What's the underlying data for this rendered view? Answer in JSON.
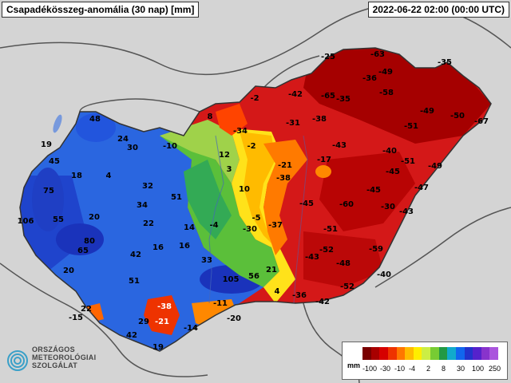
{
  "title": "Csapadékösszeg-anomália (30 nap) [mm]",
  "timestamp": "2022-06-22 02:00 (00:00 UTC)",
  "logo": {
    "line1": "ORSZÁGOS",
    "line2": "METEOROLÓGIAI",
    "line3": "SZOLGÁLAT"
  },
  "legend": {
    "unit": "mm",
    "colors": [
      "#7a0000",
      "#a80000",
      "#d60000",
      "#ee3300",
      "#ff7700",
      "#ffbb00",
      "#ffee00",
      "#ccee44",
      "#77cc33",
      "#229944",
      "#11aacc",
      "#1166ee",
      "#2233cc",
      "#5522cc",
      "#8833cc",
      "#aa55dd"
    ],
    "ticks": [
      "-100",
      "-30",
      "-10",
      "-4",
      "2",
      "8",
      "30",
      "100",
      "250"
    ]
  },
  "values": [
    {
      "label": "-63"
    },
    {
      "label": "-35"
    },
    {
      "label": "-25"
    },
    {
      "label": "-49"
    },
    {
      "label": "-36"
    },
    {
      "label": "-58"
    },
    {
      "label": "-42"
    },
    {
      "label": "-65"
    },
    {
      "label": "-35"
    },
    {
      "label": "-2"
    },
    {
      "label": "-49"
    },
    {
      "label": "-50"
    },
    {
      "label": "-67"
    },
    {
      "label": "8"
    },
    {
      "label": "-31"
    },
    {
      "label": "-38"
    },
    {
      "label": "-51"
    },
    {
      "label": "48"
    },
    {
      "label": "-34"
    },
    {
      "label": "24"
    },
    {
      "label": "30"
    },
    {
      "label": "-10"
    },
    {
      "label": "-2"
    },
    {
      "label": "19"
    },
    {
      "label": "-43"
    },
    {
      "label": "12"
    },
    {
      "label": "-40"
    },
    {
      "label": "45"
    },
    {
      "label": "-17"
    },
    {
      "label": "-51"
    },
    {
      "label": "-49"
    },
    {
      "label": "3"
    },
    {
      "label": "-21"
    },
    {
      "label": "-45"
    },
    {
      "label": "18"
    },
    {
      "label": "4"
    },
    {
      "label": "-38"
    },
    {
      "label": "32"
    },
    {
      "label": "10"
    },
    {
      "label": "-47"
    },
    {
      "label": "75"
    },
    {
      "label": "-45"
    },
    {
      "label": "51"
    },
    {
      "label": "-45"
    },
    {
      "label": "-60"
    },
    {
      "label": "-30"
    },
    {
      "label": "34"
    },
    {
      "label": "-43"
    },
    {
      "label": "20"
    },
    {
      "label": "-5"
    },
    {
      "label": "106"
    },
    {
      "label": "55"
    },
    {
      "label": "22"
    },
    {
      "label": "14"
    },
    {
      "label": "-4"
    },
    {
      "label": "-30"
    },
    {
      "label": "-37"
    },
    {
      "label": "-51"
    },
    {
      "label": "80"
    },
    {
      "label": "65"
    },
    {
      "label": "16"
    },
    {
      "label": "16"
    },
    {
      "label": "-59"
    },
    {
      "label": "42"
    },
    {
      "label": "-52"
    },
    {
      "label": "-43"
    },
    {
      "label": "33"
    },
    {
      "label": "-48"
    },
    {
      "label": "20"
    },
    {
      "label": "21"
    },
    {
      "label": "-40"
    },
    {
      "label": "51"
    },
    {
      "label": "105"
    },
    {
      "label": "56"
    },
    {
      "label": "-52"
    },
    {
      "label": "4"
    },
    {
      "label": "-36"
    },
    {
      "label": "-38"
    },
    {
      "label": "-11"
    },
    {
      "label": "-42"
    },
    {
      "label": "22"
    },
    {
      "label": "-15"
    },
    {
      "label": "29"
    },
    {
      "label": "-21"
    },
    {
      "label": "-20"
    },
    {
      "label": "-14"
    },
    {
      "label": "42"
    },
    {
      "label": "19"
    }
  ]
}
